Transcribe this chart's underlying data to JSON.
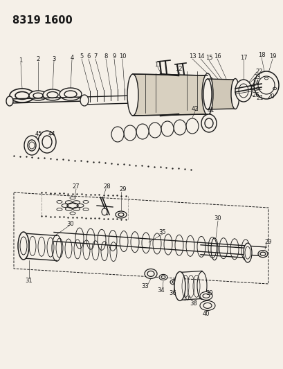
{
  "title": "8319 1600",
  "bg_color": "#f5f0e8",
  "diagram_color": "#1a1a1a",
  "title_fontsize": 10.5,
  "label_fontsize": 6.0
}
